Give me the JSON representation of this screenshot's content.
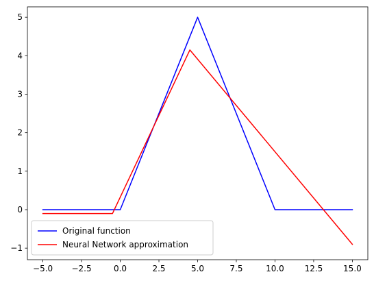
{
  "chart_data": {
    "type": "line",
    "title": "",
    "xlabel": "",
    "ylabel": "",
    "xlim": [
      -6,
      16
    ],
    "ylim": [
      -1.3,
      5.27
    ],
    "xticks": [
      -5.0,
      -2.5,
      0.0,
      2.5,
      5.0,
      7.5,
      10.0,
      12.5,
      15.0
    ],
    "xtick_labels": [
      "−5.0",
      "−2.5",
      "0.0",
      "2.5",
      "5.0",
      "7.5",
      "10.0",
      "12.5",
      "15.0"
    ],
    "yticks": [
      -1,
      0,
      1,
      2,
      3,
      4,
      5
    ],
    "ytick_labels": [
      "−1",
      "0",
      "1",
      "2",
      "3",
      "4",
      "5"
    ],
    "grid": false,
    "legend_position": "lower-left",
    "series": [
      {
        "name": "Original function",
        "color": "#0000ff",
        "x": [
          -5,
          0,
          5,
          10,
          15
        ],
        "y": [
          0,
          0,
          5,
          0,
          0
        ]
      },
      {
        "name": "Neural Network approximation",
        "color": "#ff0000",
        "x": [
          -5,
          -0.5,
          4.5,
          15
        ],
        "y": [
          -0.1,
          -0.1,
          4.15,
          -0.9
        ]
      }
    ]
  }
}
